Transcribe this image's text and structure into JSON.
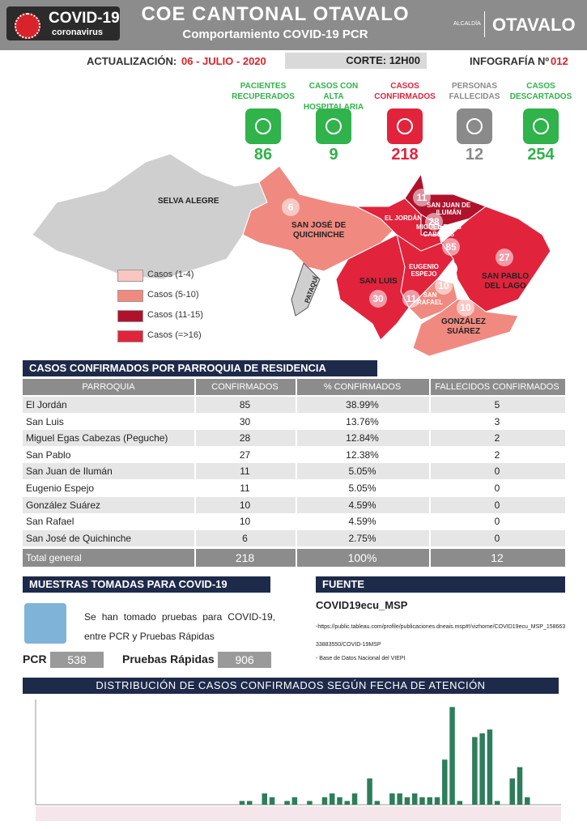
{
  "header": {
    "badge_title": "COVID-19",
    "badge_subtitle": "coronavirus",
    "title": "COE CANTONAL OTAVALO",
    "subtitle": "Comportamiento COVID-19 PCR",
    "municipality": "ALCALDÍA",
    "brand": "OTAVALO"
  },
  "info": {
    "update_label": "ACTUALIZACIÓN:",
    "update_date": "06 - JULIO - 2020",
    "cutoff": "CORTE: 12H00",
    "infographic_label": "INFOGRAFÍA Nº",
    "infographic_number": "012"
  },
  "stats": [
    {
      "label": "PACIENTES\nRECUPERADOS",
      "value": 86,
      "color": "#2fb34a"
    },
    {
      "label": "CASOS CON ALTA\nHOSPITALARIA",
      "value": 9,
      "color": "#2fb34a"
    },
    {
      "label": "CASOS\nCONFIRMADOS",
      "value": 218,
      "color": "#e2233c"
    },
    {
      "label": "PERSONAS\nFALLECIDAS",
      "value": 12,
      "color": "#8a8a8a"
    },
    {
      "label": "CASOS\nDESCARTADOS",
      "value": 254,
      "color": "#2fb34a"
    }
  ],
  "map": {
    "regions": [
      {
        "name": "SELVA ALEGRE"
      },
      {
        "name": "SAN JOSÉ DE\nQUICHINCHE",
        "cases": 6
      },
      {
        "name": "EL JORDÁN",
        "cases": 85
      },
      {
        "name": "SAN JUAN DE\nILUMÁN",
        "cases": 11
      },
      {
        "name": "MIGUEL EGAS\nCABEZAS",
        "cases": 28
      },
      {
        "name": "SAN PABLO\nDEL LAGO",
        "cases": 27
      },
      {
        "name": "EUGENIO\nESPEJO",
        "cases": 11
      },
      {
        "name": "SAN LUIS",
        "cases": 30
      },
      {
        "name": "SAN\nRAFAEL",
        "cases": 10
      },
      {
        "name": "GONZÁLEZ\nSUÁREZ",
        "cases": 10
      },
      {
        "name": "PATAQUÍ"
      }
    ],
    "legend": [
      {
        "label": "Casos (1-4)",
        "color": "#f9c6c2"
      },
      {
        "label": "Casos (5-10)",
        "color": "#f08a80"
      },
      {
        "label": "Casos (11-15)",
        "color": "#b0122c"
      },
      {
        "label": "Casos (=>16)",
        "color": "#e2233c"
      }
    ]
  },
  "table": {
    "title": "CASOS CONFIRMADOS POR PARROQUIA DE RESIDENCIA",
    "columns": [
      "PARROQUIA",
      "CONFIRMADOS",
      "% CONFIRMADOS",
      "FALLECIDOS CONFIRMADOS"
    ],
    "rows": [
      [
        "El Jordán",
        85,
        "38.99%",
        5
      ],
      [
        "San Luis",
        30,
        "13.76%",
        3
      ],
      [
        "Miguel Egas Cabezas (Peguche)",
        28,
        "12.84%",
        2
      ],
      [
        "San Pablo",
        27,
        "12.38%",
        2
      ],
      [
        "San Juan de Ilumán",
        11,
        "5.05%",
        0
      ],
      [
        "Eugenio Espejo",
        11,
        "5.05%",
        0
      ],
      [
        "González Suárez",
        10,
        "4.59%",
        0
      ],
      [
        "San Rafael",
        10,
        "4.59%",
        0
      ],
      [
        "San José de Quichinche",
        6,
        "2.75%",
        0
      ]
    ],
    "total": [
      "Total general",
      218,
      "100%",
      12
    ]
  },
  "samples": {
    "title": "MUESTRAS TOMADAS PARA COVID-19",
    "text": "Se han tomado pruebas para COVID-19, entre PCR y Pruebas Rápidas",
    "pcr_label": "PCR",
    "pcr": 538,
    "rapid_label": "Pruebas Rápidas",
    "rapid": 906
  },
  "source": {
    "title": "FUENTE",
    "name": "COVID19ecu_MSP",
    "refs": [
      "-https://public.tableau.com/profile/publicaciones.dneais.msp#!/vizhome/COVID19ecu_MSP_15866333883550/COVID-19MSP",
      "- Base de Datos Nacional del VIEPI"
    ]
  },
  "chart_data": {
    "type": "bar",
    "title": "DISTRIBUCIÓN DE CASOS CONFIRMADOS SEGÚN FECHA DE ATENCIÓN",
    "color": "#2e7d5b",
    "ylim": [
      0,
      28
    ],
    "values": [
      0,
      0,
      0,
      0,
      0,
      0,
      0,
      0,
      0,
      0,
      0,
      0,
      0,
      0,
      0,
      0,
      0,
      0,
      0,
      0,
      0,
      0,
      0,
      0,
      0,
      0,
      0,
      1,
      1,
      0,
      3,
      2,
      0,
      1,
      2,
      0,
      1,
      0,
      2,
      3,
      2,
      1,
      3,
      0,
      7,
      1,
      0,
      3,
      3,
      2,
      3,
      2,
      2,
      2,
      12,
      26,
      1,
      0,
      18,
      19,
      20,
      1,
      0,
      7,
      10,
      2,
      0,
      0,
      0,
      0
    ]
  }
}
